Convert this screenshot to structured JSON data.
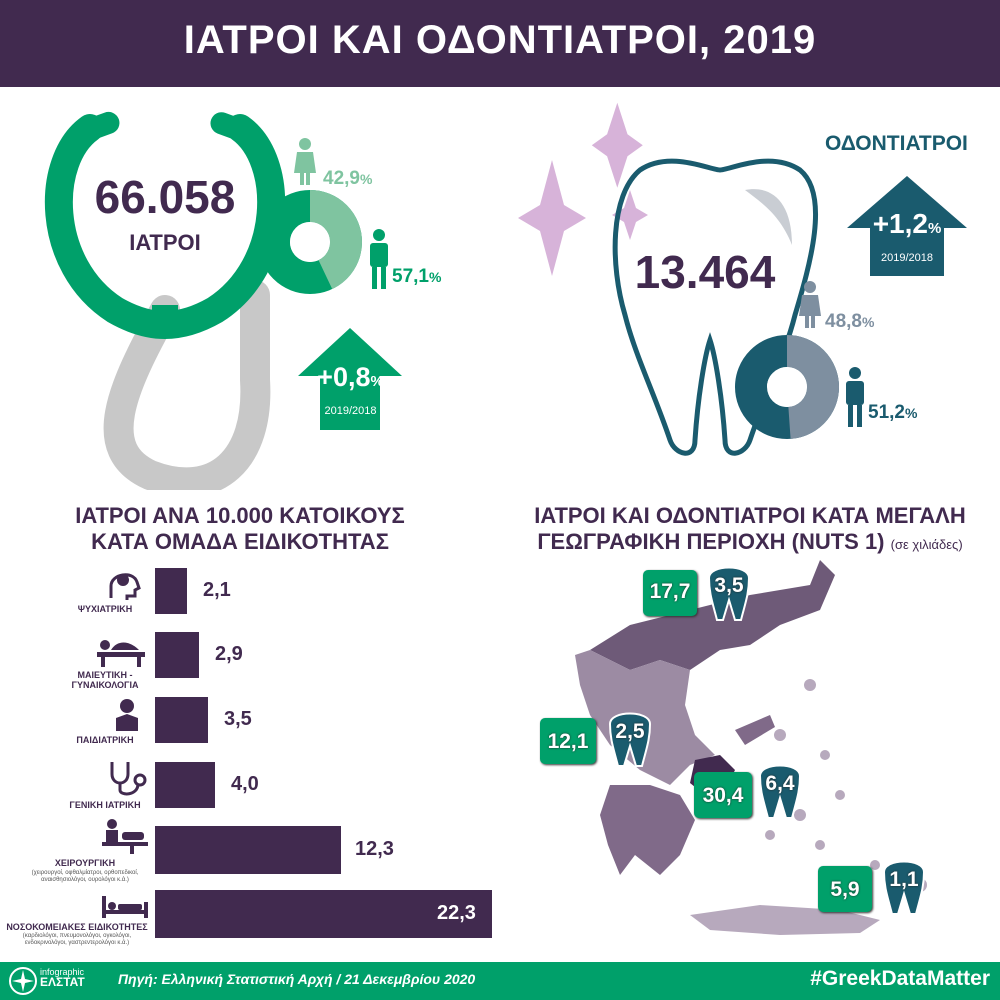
{
  "header": {
    "title": "ΙΑΤΡΟΙ ΚΑΙ ΟΔΟΝΤΙΑΤΡΟΙ, 2019"
  },
  "doctors": {
    "total": "66.058",
    "label": "ΙΑΤΡΟΙ",
    "female_pct": "42,9",
    "male_pct": "57,1",
    "female_share": 0.429,
    "change": "+0,8",
    "change_period": "2019/2018",
    "color_primary": "#00a06a",
    "color_light": "#7fc4a0"
  },
  "dentists": {
    "title": "ΟΔΟΝΤΙΑΤΡΟΙ",
    "total": "13.464",
    "female_pct": "48,8",
    "male_pct": "51,2",
    "female_share": 0.488,
    "change": "+1,2",
    "change_period": "2019/2018",
    "color_primary": "#1a5b6e",
    "color_light": "#7e8fa0"
  },
  "pct_sign": "%",
  "specialties": {
    "title_line1": "ΙΑΤΡΟΙ ΑΝΑ 10.000 ΚΑΤΟΙΚΟΥΣ",
    "title_line2": "ΚΑΤΑ ΟΜΑΔΑ ΕΙΔΙΚΟΤΗΤΑΣ",
    "labels": [
      "ΨΥΧΙΑΤΡΙΚΗ",
      "ΜΑΙΕΥΤΙΚΗ - ΓΥΝΑΙΚΟΛΟΓΙΑ",
      "ΠΑΙΔΙΑΤΡΙΚΗ",
      "ΓΕΝΙΚΗ ΙΑΤΡΙΚΗ",
      "ΧΕΙΡΟΥΡΓΙΚΗ",
      "ΝΟΣΟΚΟΜΕΙΑΚΕΣ ΕΙΔΙΚΟΤΗΤΕΣ"
    ],
    "display_values": [
      "2,1",
      "2,9",
      "3,5",
      "4,0",
      "12,3",
      "22,3"
    ],
    "surgery_note": "(χειρουργοί, οφθαλμίατροι, ορθοπεδικοί, αναισθησιολόγοι, ουρολόγοι κ.ά.)",
    "hospital_note": "(καρδιολόγοι, πνευμονολόγοι, ογκολόγοι, ενδοκρινολόγοι, γαστρεντερολόγοι κ.ά.)"
  },
  "chart_data": {
    "type": "bar",
    "orientation": "horizontal",
    "categories": [
      "ΨΥΧΙΑΤΡΙΚΗ",
      "ΜΑΙΕΥΤΙΚΗ - ΓΥΝΑΙΚΟΛΟΓΙΑ",
      "ΠΑΙΔΙΑΤΡΙΚΗ",
      "ΓΕΝΙΚΗ ΙΑΤΡΙΚΗ",
      "ΧΕΙΡΟΥΡΓΙΚΗ",
      "ΝΟΣΟΚΟΜΕΙΑΚΕΣ ΕΙΔΙΚΟΤΗΤΕΣ"
    ],
    "values": [
      2.1,
      2.9,
      3.5,
      4.0,
      12.3,
      22.3
    ],
    "title": "ΙΑΤΡΟΙ ΑΝΑ 10.000 ΚΑΤΟΙΚΟΥΣ ΚΑΤΑ ΟΜΑΔΑ ΕΙΔΙΚΟΤΗΤΑΣ"
  },
  "regions": {
    "title_line1": "ΙΑΤΡΟΙ ΚΑΙ ΟΔΟΝΤΙΑΤΡΟΙ ΚΑΤΑ ΜΕΓΑΛΗ",
    "title_line2": "ΓΕΩΓΡΑΦΙΚΗ ΠΕΡΙΟΧΗ (NUTS 1)",
    "unit": "(σε χιλιάδες)",
    "items": [
      {
        "doctors": "17,7",
        "dentists": "3,5"
      },
      {
        "doctors": "12,1",
        "dentists": "2,5"
      },
      {
        "doctors": "30,4",
        "dentists": "6,4"
      },
      {
        "doctors": "5,9",
        "dentists": "1,1"
      }
    ]
  },
  "footer": {
    "logo_top": "infographic",
    "logo_bottom": "ΕΛΣΤΑΤ",
    "source": "Πηγή: Ελληνική Στατιστική Αρχή  /  21 Δεκεμβρίου 2020",
    "hashtag": "#GreekDataMatter"
  }
}
